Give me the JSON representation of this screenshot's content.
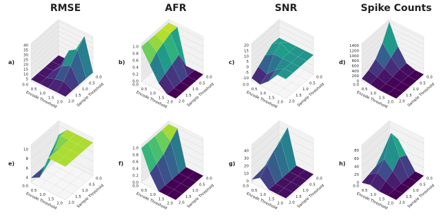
{
  "chart_data": [
    {
      "type": "surface3d",
      "title": "RMSE",
      "label": "a)",
      "xlabel": "Encode Threshold",
      "ylabel": "Sample Threshold",
      "colormap": "viridis",
      "x": [
        0,
        0.5,
        1,
        1.5,
        2
      ],
      "y": [
        0,
        0.5,
        1,
        1.5,
        2
      ],
      "z": [
        [
          5,
          5,
          20,
          38,
          5
        ],
        [
          5,
          5,
          25,
          30,
          5
        ],
        [
          5,
          6,
          15,
          20,
          5
        ],
        [
          5,
          5,
          8,
          10,
          5
        ],
        [
          5,
          5,
          5,
          5,
          5
        ]
      ],
      "xlim": [
        0,
        2
      ],
      "ylim": [
        0,
        2
      ],
      "zlim": [
        3,
        42
      ],
      "xticks": [
        {
          "value": 0,
          "label": "0.0"
        },
        0.5,
        {
          "value": 1,
          "label": "1.0"
        },
        1.5,
        {
          "value": 2,
          "label": "2.0"
        }
      ],
      "yticks": [
        {
          "value": 0,
          "label": "0.0"
        },
        0.5,
        {
          "value": 1,
          "label": "1.0"
        },
        1.5,
        {
          "value": 2,
          "label": "2.0"
        }
      ],
      "zticks": [
        5,
        10,
        15,
        20,
        25,
        30,
        35,
        40
      ]
    },
    {
      "type": "surface3d",
      "title": "AFR",
      "label": "b)",
      "xlabel": "Encode Threshold",
      "ylabel": "Sample Threshold",
      "colormap": "viridis",
      "x": [
        0,
        0.5,
        1,
        1.5,
        2
      ],
      "y": [
        0,
        0.5,
        1,
        1.5,
        2
      ],
      "z": [
        [
          1,
          1,
          0,
          0,
          0
        ],
        [
          1,
          1,
          0.5,
          0,
          0
        ],
        [
          1,
          0.9,
          0.4,
          0,
          0
        ],
        [
          1,
          0.8,
          0.3,
          0,
          0
        ],
        [
          1,
          0.6,
          0.2,
          0,
          0
        ]
      ],
      "xlim": [
        0,
        2
      ],
      "ylim": [
        0,
        2
      ],
      "zlim": [
        0,
        1.1
      ],
      "xticks": [
        {
          "value": 0,
          "label": "0.0"
        },
        0.5,
        {
          "value": 1,
          "label": "1.0"
        },
        1.5,
        {
          "value": 2,
          "label": "2.0"
        }
      ],
      "yticks": [
        {
          "value": 0,
          "label": "0.0"
        },
        0.5,
        {
          "value": 1,
          "label": "1.0"
        },
        1.5,
        {
          "value": 2,
          "label": "2.0"
        }
      ],
      "zticks": [
        {
          "value": 0,
          "label": "0.0"
        },
        0.2,
        0.4,
        0.6,
        0.8,
        {
          "value": 1,
          "label": "1.0"
        }
      ]
    },
    {
      "type": "surface3d",
      "title": "SNR",
      "label": "c)",
      "xlabel": "Encode Threshold",
      "ylabel": "Sample Threshold",
      "colormap": "viridis",
      "x": [
        0,
        0.5,
        1,
        1.5,
        2
      ],
      "y": [
        0,
        0.5,
        1,
        1.5,
        2
      ],
      "z": [
        [
          5,
          5,
          5,
          5,
          5
        ],
        [
          5,
          10,
          5,
          5,
          5
        ],
        [
          0,
          5,
          5,
          5,
          5
        ],
        [
          -5,
          -8,
          0,
          5,
          5
        ],
        [
          -10,
          -12,
          -5,
          5,
          5
        ]
      ],
      "xlim": [
        0,
        2
      ],
      "ylim": [
        0,
        2
      ],
      "zlim": [
        -13,
        22
      ],
      "xticks": [
        {
          "value": 0,
          "label": "0.0"
        },
        0.5,
        {
          "value": 1,
          "label": "1.0"
        },
        1.5,
        {
          "value": 2,
          "label": "2.0"
        }
      ],
      "yticks": [
        {
          "value": 0,
          "label": "0.0"
        },
        0.5,
        {
          "value": 1,
          "label": "1.0"
        },
        1.5,
        {
          "value": 2,
          "label": "2.0"
        }
      ],
      "zticks": [
        -10,
        -5,
        0,
        5,
        10,
        15,
        20
      ]
    },
    {
      "type": "surface3d",
      "title": "Spike Counts",
      "label": "d)",
      "xlabel": "Encode Threshold",
      "ylabel": "Sample Threshold",
      "colormap": "viridis",
      "x": [
        0,
        0.5,
        1,
        1.5,
        2
      ],
      "y": [
        0,
        0.5,
        1,
        1.5,
        2
      ],
      "z": [
        [
          1400,
          600,
          100,
          0,
          0
        ],
        [
          800,
          400,
          100,
          0,
          0
        ],
        [
          400,
          200,
          50,
          0,
          0
        ],
        [
          200,
          100,
          0,
          0,
          0
        ],
        [
          100,
          50,
          0,
          0,
          0
        ]
      ],
      "xlim": [
        0,
        2
      ],
      "ylim": [
        0,
        2
      ],
      "zlim": [
        0,
        1500
      ],
      "xticks": [
        {
          "value": 0,
          "label": "0.0"
        },
        0.5,
        {
          "value": 1,
          "label": "1.0"
        },
        1.5,
        {
          "value": 2,
          "label": "2.0"
        }
      ],
      "yticks": [
        {
          "value": 0,
          "label": "0.0"
        },
        0.5,
        {
          "value": 1,
          "label": "1.0"
        },
        1.5,
        {
          "value": 2,
          "label": "2.0"
        }
      ],
      "zticks": [
        0,
        200,
        400,
        600,
        800,
        1000,
        1200,
        1400
      ]
    },
    {
      "type": "surface3d",
      "label": "e)",
      "xlabel": "Encode Threshold",
      "ylabel": "Sample Threshold",
      "colormap": "viridis",
      "x": [
        0,
        0.5,
        1,
        1.5,
        2
      ],
      "y": [
        0,
        0.5,
        1,
        1.5,
        2
      ],
      "z": [
        [
          8,
          10,
          10,
          10,
          10
        ],
        [
          6,
          10,
          10,
          10,
          10
        ],
        [
          4,
          8,
          10,
          10,
          10
        ],
        [
          4,
          6,
          10,
          10,
          10
        ],
        [
          4,
          5,
          10,
          10,
          10
        ]
      ],
      "xlim": [
        0,
        2
      ],
      "ylim": [
        0,
        2
      ],
      "zlim": [
        3,
        11
      ],
      "xticks": [
        {
          "value": 0,
          "label": "0.0"
        },
        0.5,
        {
          "value": 1,
          "label": "1.0"
        },
        1.5,
        {
          "value": 2,
          "label": "2.0"
        }
      ],
      "yticks": [
        {
          "value": 0,
          "label": "0.0"
        },
        0.5,
        {
          "value": 1,
          "label": "1.0"
        },
        1.5,
        {
          "value": 2,
          "label": "2.0"
        }
      ],
      "zticks": [
        4,
        6,
        8,
        10
      ]
    },
    {
      "type": "surface3d",
      "label": "f)",
      "xlabel": "Encode Threshold",
      "ylabel": "Sample Threshold",
      "colormap": "viridis",
      "x": [
        0,
        0.5,
        1,
        1.5,
        2
      ],
      "y": [
        0,
        0.5,
        1,
        1.5,
        2
      ],
      "z": [
        [
          1,
          1,
          0,
          0,
          0
        ],
        [
          1,
          0.8,
          0,
          0,
          0
        ],
        [
          1,
          0.6,
          0,
          0,
          0
        ],
        [
          1,
          0.5,
          0,
          0,
          0
        ],
        [
          1,
          0.4,
          0,
          0,
          0
        ]
      ],
      "xlim": [
        0,
        2
      ],
      "ylim": [
        0,
        2
      ],
      "zlim": [
        0,
        1.1
      ],
      "xticks": [
        {
          "value": 0,
          "label": "0.0"
        },
        0.5,
        {
          "value": 1,
          "label": "1.0"
        },
        1.5,
        {
          "value": 2,
          "label": "2.0"
        }
      ],
      "yticks": [
        {
          "value": 0,
          "label": "0.0"
        },
        0.5,
        {
          "value": 1,
          "label": "1.0"
        },
        1.5,
        {
          "value": 2,
          "label": "2.0"
        }
      ],
      "zticks": [
        {
          "value": 0,
          "label": "0.0"
        },
        0.2,
        0.4,
        0.6,
        0.8,
        {
          "value": 1,
          "label": "1.0"
        }
      ]
    },
    {
      "type": "surface3d",
      "label": "g)",
      "xlabel": "Encode Threshold",
      "ylabel": "Sample Threshold",
      "colormap": "viridis",
      "x": [
        0,
        0.5,
        1,
        1.5,
        2
      ],
      "y": [
        0,
        0.5,
        1,
        1.5,
        2
      ],
      "z": [
        [
          20,
          45,
          0,
          0,
          0
        ],
        [
          10,
          35,
          0,
          0,
          0
        ],
        [
          5,
          30,
          0,
          0,
          0
        ],
        [
          3,
          20,
          0,
          0,
          0
        ],
        [
          2,
          10,
          0,
          0,
          0
        ]
      ],
      "xlim": [
        0,
        2
      ],
      "ylim": [
        0,
        2
      ],
      "zlim": [
        -2,
        48
      ],
      "xticks": [
        {
          "value": 0,
          "label": "0.0"
        },
        0.5,
        {
          "value": 1,
          "label": "1.0"
        },
        1.5,
        {
          "value": 2,
          "label": "2.0"
        }
      ],
      "yticks": [
        {
          "value": 0,
          "label": "0.0"
        },
        0.5,
        {
          "value": 1,
          "label": "1.0"
        },
        1.5,
        {
          "value": 2,
          "label": "2.0"
        }
      ],
      "zticks": [
        0,
        10,
        20,
        30,
        40
      ]
    },
    {
      "type": "surface3d",
      "label": "h)",
      "xlabel": "Encode Threshold",
      "ylabel": "Sample Threshold",
      "colormap": "viridis",
      "x": [
        0,
        0.5,
        1,
        1.5,
        2
      ],
      "y": [
        0,
        0.5,
        1,
        1.5,
        2
      ],
      "z": [
        [
          20,
          60,
          30,
          0,
          0
        ],
        [
          30,
          90,
          40,
          0,
          0
        ],
        [
          10,
          40,
          20,
          0,
          0
        ],
        [
          5,
          20,
          10,
          0,
          0
        ],
        [
          0,
          5,
          0,
          0,
          0
        ]
      ],
      "xlim": [
        0,
        2
      ],
      "ylim": [
        0,
        2
      ],
      "zlim": [
        0,
        95
      ],
      "xticks": [
        {
          "value": 0,
          "label": "0.0"
        },
        0.5,
        {
          "value": 1,
          "label": "1.0"
        },
        1.5,
        {
          "value": 2,
          "label": "2.0"
        }
      ],
      "yticks": [
        {
          "value": 0,
          "label": "0.0"
        },
        0.5,
        {
          "value": 1,
          "label": "1.0"
        },
        1.5,
        {
          "value": 2,
          "label": "2.0"
        }
      ],
      "zticks": [
        0,
        20,
        40,
        60,
        80
      ]
    }
  ]
}
